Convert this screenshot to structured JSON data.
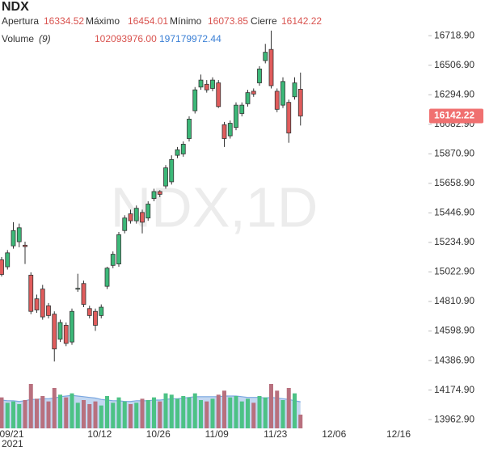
{
  "chart_data": {
    "type": "candlestick",
    "title": "NDX",
    "watermark": "NDX,1D",
    "ohlc_labels": [
      "Apertura",
      "Máximo",
      "Mínimo",
      "Cierre"
    ],
    "volume_label": "Volume",
    "volume_period": "(9)",
    "volume_readout": {
      "value": 102093976,
      "label": "102093976.00"
    },
    "volume_ma_readout": {
      "value": 197179972.44,
      "label": "197179972.44"
    },
    "year_label": "2021",
    "up_color": "#3cb878",
    "down_color": "#e05c5c",
    "volume_up_color": "#4cc285",
    "volume_down_color": "#b8707e",
    "volume_ma_color": "#7aa7e0",
    "last_price_color": "#f07070",
    "ylim": [
      13900,
      16975
    ],
    "yticks": [
      {
        "value": 13962.9,
        "label": "13962.90"
      },
      {
        "value": 14174.9,
        "label": "14174.90"
      },
      {
        "value": 14386.9,
        "label": "14386.90"
      },
      {
        "value": 14598.9,
        "label": "14598.90"
      },
      {
        "value": 14810.9,
        "label": "14810.90"
      },
      {
        "value": 15022.9,
        "label": "15022.90"
      },
      {
        "value": 15234.9,
        "label": "15234.90"
      },
      {
        "value": 15446.9,
        "label": "15446.90"
      },
      {
        "value": 15658.9,
        "label": "15658.90"
      },
      {
        "value": 15870.9,
        "label": "15870.90"
      },
      {
        "value": 16082.9,
        "label": "16082.90"
      },
      {
        "value": 16294.9,
        "label": "16294.90"
      },
      {
        "value": 16506.9,
        "label": "16506.90"
      },
      {
        "value": 16718.9,
        "label": "16718.90"
      }
    ],
    "categories": [
      null,
      null,
      "09/21",
      null,
      null,
      null,
      null,
      null,
      null,
      null,
      null,
      null,
      null,
      null,
      null,
      null,
      null,
      "10/12",
      null,
      null,
      null,
      null,
      null,
      null,
      null,
      null,
      null,
      "10/26",
      null,
      null,
      null,
      null,
      null,
      null,
      null,
      null,
      null,
      "11/09",
      null,
      null,
      null,
      null,
      null,
      null,
      null,
      null,
      null,
      "11/23",
      null,
      null,
      null,
      null,
      null,
      null,
      null,
      null,
      null,
      "12/06",
      null,
      null,
      null,
      null,
      null,
      null,
      null,
      null,
      null,
      null,
      "12/16",
      null,
      null
    ],
    "open": [
      15110,
      15060,
      15210,
      15240,
      15215,
      15000,
      14830,
      14900,
      14780,
      14720,
      14540,
      14640,
      14520,
      14900,
      14940,
      14760,
      14740,
      14710,
      14920,
      15070,
      15080,
      15320,
      15440,
      15390,
      15450,
      15410,
      15550,
      15600,
      15640,
      15670,
      15860,
      15870,
      15980,
      16180,
      16350,
      16370,
      16340,
      16380,
      16080,
      16000,
      16060,
      16160,
      16230,
      16320,
      16380,
      16540,
      16620,
      16320,
      16220,
      16240,
      16280,
      16334.52,
      null,
      null,
      null,
      null,
      null,
      null,
      null,
      null,
      null,
      null,
      null,
      null,
      null,
      null,
      null,
      null,
      null,
      null,
      null
    ],
    "high": [
      15130,
      15180,
      15380,
      15370,
      15240,
      15020,
      14860,
      14930,
      14800,
      14740,
      14680,
      14660,
      14760,
      15010,
      14960,
      14780,
      14760,
      14790,
      15060,
      15170,
      15310,
      15430,
      15470,
      15500,
      15470,
      15530,
      15620,
      15610,
      15790,
      15860,
      15920,
      15960,
      16140,
      16350,
      16440,
      16400,
      16420,
      16400,
      16100,
      16110,
      16240,
      16240,
      16330,
      16340,
      16500,
      16660,
      16755,
      16340,
      16420,
      16260,
      16420,
      16454.01,
      null,
      null,
      null,
      null,
      null,
      null,
      null,
      null,
      null,
      null,
      null,
      null,
      null,
      null,
      null,
      null,
      null,
      null,
      null
    ],
    "low": [
      14990,
      15040,
      15190,
      15200,
      15080,
      14720,
      14730,
      14680,
      14690,
      14380,
      14520,
      14490,
      14500,
      14880,
      14770,
      14690,
      14600,
      14690,
      14900,
      15050,
      15060,
      15300,
      15370,
      15370,
      15300,
      15390,
      15530,
      15560,
      15620,
      15650,
      15840,
      15850,
      15960,
      16160,
      16330,
      16310,
      16320,
      16200,
      15920,
      15980,
      16040,
      16140,
      16210,
      16280,
      16360,
      16520,
      16340,
      16170,
      16200,
      15950,
      16260,
      16073.85,
      null,
      null,
      null,
      null,
      null,
      null,
      null,
      null,
      null,
      null,
      null,
      null,
      null,
      null,
      null,
      null,
      null,
      null,
      null
    ],
    "close": [
      15005,
      15160,
      15320,
      15340,
      15205,
      14740,
      14750,
      14700,
      14710,
      14470,
      14660,
      14510,
      14740,
      14905,
      14790,
      14710,
      14640,
      14770,
      15050,
      15150,
      15290,
      15410,
      15390,
      15480,
      15380,
      15510,
      15600,
      15580,
      15770,
      15830,
      15900,
      15940,
      16120,
      16330,
      16400,
      16330,
      16400,
      16210,
      15980,
      16090,
      16220,
      16220,
      16310,
      16300,
      16480,
      16600,
      16360,
      16190,
      16390,
      16020,
      16380,
      16142.22,
      null,
      null,
      null,
      null,
      null,
      null,
      null,
      null,
      null,
      null,
      null,
      null,
      null,
      null,
      null,
      null,
      null,
      null,
      null
    ],
    "volume": [
      230000000,
      190000000,
      200000000,
      180000000,
      210000000,
      330000000,
      220000000,
      240000000,
      200000000,
      300000000,
      250000000,
      230000000,
      260000000,
      190000000,
      210000000,
      180000000,
      200000000,
      170000000,
      240000000,
      190000000,
      230000000,
      200000000,
      180000000,
      190000000,
      220000000,
      210000000,
      230000000,
      200000000,
      260000000,
      250000000,
      220000000,
      240000000,
      230000000,
      260000000,
      210000000,
      200000000,
      220000000,
      250000000,
      280000000,
      230000000,
      240000000,
      200000000,
      220000000,
      190000000,
      240000000,
      230000000,
      330000000,
      280000000,
      210000000,
      300000000,
      260000000,
      102093976,
      null,
      null,
      null,
      null,
      null,
      null,
      null,
      null,
      null,
      null,
      null,
      null,
      null,
      null,
      null,
      null,
      null,
      null,
      null
    ],
    "volume_ma": [
      210000000,
      205000000,
      205000000,
      200000000,
      205000000,
      215000000,
      215000000,
      220000000,
      220000000,
      225000000,
      235000000,
      240000000,
      245000000,
      240000000,
      235000000,
      230000000,
      225000000,
      215000000,
      210000000,
      205000000,
      205000000,
      200000000,
      200000000,
      205000000,
      205000000,
      205000000,
      210000000,
      210000000,
      215000000,
      220000000,
      220000000,
      225000000,
      230000000,
      235000000,
      235000000,
      235000000,
      235000000,
      235000000,
      240000000,
      240000000,
      240000000,
      235000000,
      230000000,
      230000000,
      230000000,
      225000000,
      230000000,
      225000000,
      220000000,
      215000000,
      205000000,
      197179972.44,
      null,
      null,
      null,
      null,
      null,
      null,
      null,
      null,
      null,
      null,
      null,
      null,
      null,
      null,
      null,
      null,
      null,
      null,
      null
    ]
  }
}
